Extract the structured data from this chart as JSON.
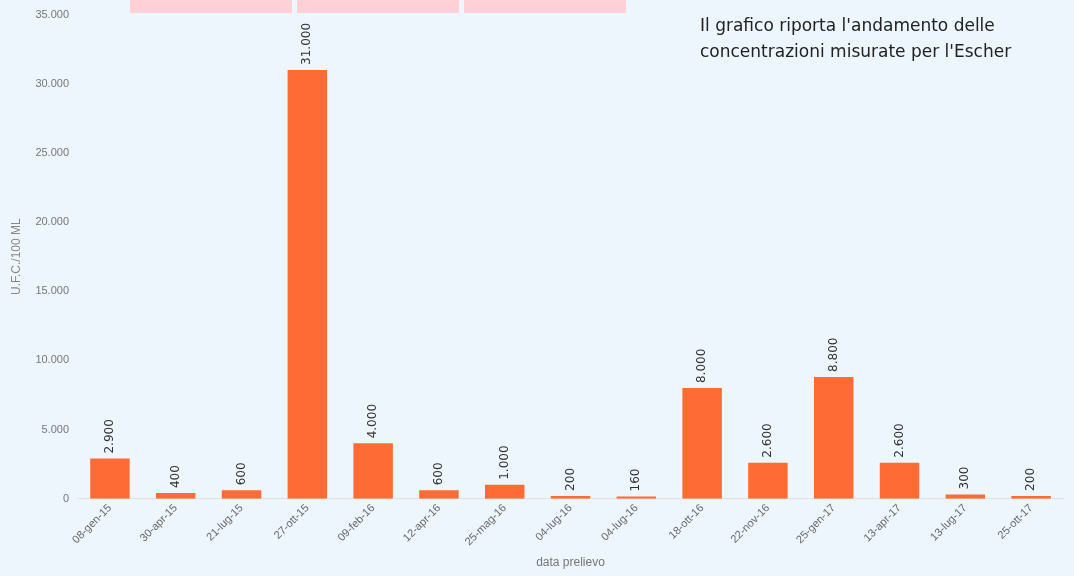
{
  "chart_data": {
    "type": "bar",
    "xlabel": "data prelievo",
    "ylabel": "U.F.C./100 ML",
    "categories": [
      "08-gen-15",
      "30-apr-15",
      "21-lug-15",
      "27-ott-15",
      "09-feb-16",
      "12-apr-16",
      "25-mag-16",
      "04-lug-16",
      "04-lug-16",
      "18-ott-16",
      "22-nov-16",
      "25-gen-17",
      "13-apr-17",
      "13-lug-17",
      "25-ott-17"
    ],
    "values": [
      2900,
      400,
      600,
      31000,
      4000,
      600,
      1000,
      200,
      160,
      8000,
      2600,
      8800,
      2600,
      300,
      200
    ],
    "value_labels": [
      "2.900",
      "400",
      "600",
      "31.000",
      "4.000",
      "600",
      "1.000",
      "200",
      "160",
      "8.000",
      "2.600",
      "8.800",
      "2.600",
      "300",
      "200"
    ],
    "color": "#ff6b35",
    "ylim": [
      0,
      35000
    ],
    "yticks": [
      {
        "value": 0,
        "label": "0"
      },
      {
        "value": 5000,
        "label": "5.000"
      },
      {
        "value": 10000,
        "label": "10.000"
      },
      {
        "value": 15000,
        "label": "15.000"
      },
      {
        "value": 20000,
        "label": "20.000"
      },
      {
        "value": 25000,
        "label": "25.000"
      },
      {
        "value": 30000,
        "label": "30.000"
      },
      {
        "value": 35000,
        "label": "35.000"
      }
    ],
    "annotations": [
      "Il grafico riporta l'andamento delle concentrazioni misurate per l'Escher"
    ],
    "grid": false,
    "legend": false
  }
}
